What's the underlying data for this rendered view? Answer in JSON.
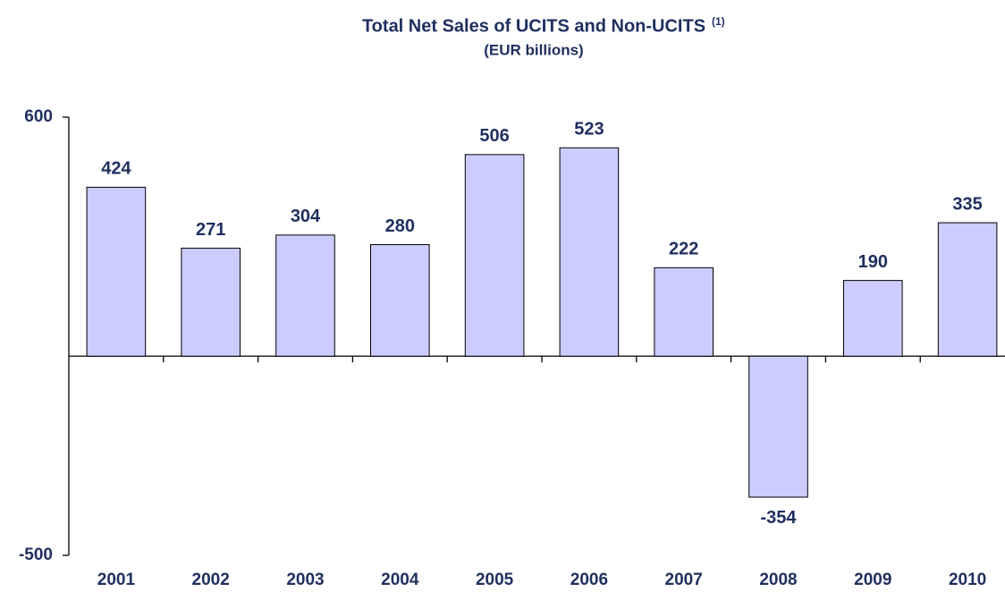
{
  "chart_data": {
    "type": "bar",
    "title": "Total Net Sales of UCITS and Non-UCITS",
    "title_note": "(1)",
    "subtitle": "(EUR billions)",
    "categories": [
      "2001",
      "2002",
      "2003",
      "2004",
      "2005",
      "2006",
      "2007",
      "2008",
      "2009",
      "2010"
    ],
    "values": [
      424,
      271,
      304,
      280,
      506,
      523,
      222,
      -354,
      190,
      335
    ],
    "color": "#ccccff",
    "ylim": [
      -500,
      600
    ],
    "yticks": [
      -500,
      600
    ],
    "grid": false
  }
}
